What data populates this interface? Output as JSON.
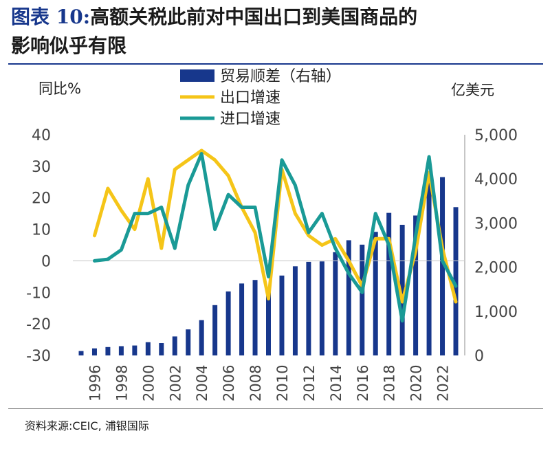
{
  "chart_data": {
    "type": "bar+line",
    "title_label": "图表 10:",
    "title_line1": "高额关税此前对中国出口到美国商品的",
    "title_line2": "影响似乎有限",
    "left_axis_label": "同比%",
    "right_axis_label": "亿美元",
    "left_ylim": [
      -30,
      40
    ],
    "left_ticks": [
      "40",
      "30",
      "20",
      "10",
      "0",
      "-10",
      "-20",
      "-30"
    ],
    "right_ylim": [
      0,
      5000
    ],
    "right_ticks": [
      "5,000",
      "4,000",
      "3,000",
      "2,000",
      "1,000",
      "0"
    ],
    "x_tick_labels": [
      "1996",
      "1998",
      "2000",
      "2002",
      "2004",
      "2006",
      "2008",
      "2010",
      "2012",
      "2014",
      "2016",
      "2018",
      "2020",
      "2022"
    ],
    "years": [
      1995,
      1996,
      1997,
      1998,
      1999,
      2000,
      2001,
      2002,
      2003,
      2004,
      2005,
      2006,
      2007,
      2008,
      2009,
      2010,
      2011,
      2012,
      2013,
      2014,
      2015,
      2016,
      2017,
      2018,
      2019,
      2020,
      2021,
      2022,
      2023
    ],
    "series": [
      {
        "name": "贸易顺差（右轴）",
        "kind": "bar",
        "axis": "right",
        "color": "#17378c",
        "values": [
          100,
          160,
          190,
          210,
          225,
          300,
          280,
          430,
          590,
          800,
          1140,
          1450,
          1630,
          1710,
          1430,
          1810,
          2020,
          2120,
          2130,
          2340,
          2610,
          2510,
          2800,
          3230,
          2960,
          3170,
          3960,
          4040,
          3360
        ]
      },
      {
        "name": "出口增速",
        "kind": "line",
        "axis": "left",
        "color": "#f5c518",
        "values": [
          8,
          23,
          16,
          10,
          26,
          4,
          29,
          32,
          35,
          32,
          27,
          17,
          9,
          -12,
          29,
          15,
          8,
          5,
          7,
          0,
          -8,
          7,
          7,
          -13,
          3,
          28,
          4,
          -13
        ]
      },
      {
        "name": "进口增速",
        "kind": "line",
        "axis": "left",
        "color": "#1a9a96",
        "values": [
          0,
          0.5,
          3.5,
          15,
          15,
          17,
          4,
          24,
          34,
          10,
          21,
          17,
          17,
          -5,
          32,
          24,
          9,
          15,
          4,
          -4,
          -10,
          15,
          5,
          -19,
          8,
          33,
          0,
          -8
        ]
      }
    ],
    "line_years": [
      1996,
      1997,
      1998,
      1999,
      2000,
      2001,
      2002,
      2003,
      2004,
      2005,
      2006,
      2007,
      2008,
      2009,
      2010,
      2011,
      2012,
      2013,
      2014,
      2015,
      2016,
      2017,
      2018,
      2019,
      2020,
      2021,
      2022,
      2023
    ],
    "source": "资料来源:CEIC, 浦银国际"
  }
}
